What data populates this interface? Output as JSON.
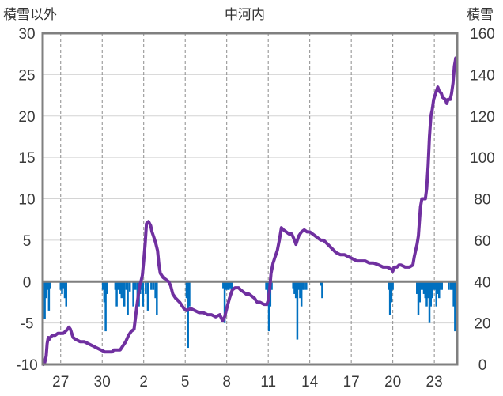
{
  "header": {
    "left_axis_label": "積雪以外",
    "title": "中河内",
    "right_axis_label": "積雪"
  },
  "chart_data": {
    "type": "line",
    "title": "中河内",
    "left_axis": {
      "label": "積雪以外",
      "ylim": [
        -10,
        30
      ],
      "ticks": [
        30,
        25,
        20,
        15,
        10,
        5,
        0,
        -5,
        -10
      ]
    },
    "right_axis": {
      "label": "積雪",
      "ylim": [
        0,
        160
      ],
      "ticks": [
        160,
        140,
        120,
        100,
        80,
        60,
        40,
        20,
        0
      ]
    },
    "x_ticks": [
      {
        "label": "27",
        "x": 1.0
      },
      {
        "label": "30",
        "x": 4.0
      },
      {
        "label": "2",
        "x": 7.0
      },
      {
        "label": "5",
        "x": 10.0
      },
      {
        "label": "8",
        "x": 13.0
      },
      {
        "label": "11",
        "x": 16.0
      },
      {
        "label": "14",
        "x": 19.0
      },
      {
        "label": "17",
        "x": 22.0
      },
      {
        "label": "20",
        "x": 25.0
      },
      {
        "label": "23",
        "x": 28.0
      }
    ],
    "x_range": [
      -0.3,
      29.65
    ],
    "grid": {
      "vertical": "dashed",
      "horizontal": "solid"
    },
    "colors": {
      "snow_line": "#7030a0",
      "bars": "#0070c0",
      "frame": "#808080"
    },
    "series": [
      {
        "type": "line",
        "axis": "right",
        "values": [
          [
            -0.25,
            0
          ],
          [
            -0.15,
            1
          ],
          [
            -0.05,
            4
          ],
          [
            0.02,
            10
          ],
          [
            0.1,
            13
          ],
          [
            0.15,
            12
          ],
          [
            0.25,
            13
          ],
          [
            0.4,
            14
          ],
          [
            0.6,
            14
          ],
          [
            0.8,
            15
          ],
          [
            1.0,
            15
          ],
          [
            1.2,
            15
          ],
          [
            1.35,
            16
          ],
          [
            1.5,
            17
          ],
          [
            1.6,
            18
          ],
          [
            1.7,
            17
          ],
          [
            1.8,
            15
          ],
          [
            1.9,
            13
          ],
          [
            2.1,
            12
          ],
          [
            2.4,
            11
          ],
          [
            2.7,
            11
          ],
          [
            3.0,
            10
          ],
          [
            3.3,
            9
          ],
          [
            3.6,
            8
          ],
          [
            3.9,
            7
          ],
          [
            4.2,
            6
          ],
          [
            4.5,
            6
          ],
          [
            4.7,
            6
          ],
          [
            4.85,
            7
          ],
          [
            5.0,
            7
          ],
          [
            5.15,
            7
          ],
          [
            5.3,
            7
          ],
          [
            5.5,
            9
          ],
          [
            5.7,
            11
          ],
          [
            5.9,
            14
          ],
          [
            6.1,
            16
          ],
          [
            6.3,
            17
          ],
          [
            6.5,
            28
          ],
          [
            6.7,
            38
          ],
          [
            6.8,
            40
          ],
          [
            6.9,
            43
          ],
          [
            7.0,
            50
          ],
          [
            7.1,
            58
          ],
          [
            7.2,
            68
          ],
          [
            7.35,
            69
          ],
          [
            7.5,
            67
          ],
          [
            7.6,
            64
          ],
          [
            7.7,
            62
          ],
          [
            7.85,
            59
          ],
          [
            8.0,
            55
          ],
          [
            8.1,
            48
          ],
          [
            8.2,
            44
          ],
          [
            8.4,
            42
          ],
          [
            8.6,
            41
          ],
          [
            8.8,
            40
          ],
          [
            8.95,
            38
          ],
          [
            9.1,
            34
          ],
          [
            9.3,
            32
          ],
          [
            9.6,
            30
          ],
          [
            9.9,
            27
          ],
          [
            10.1,
            26
          ],
          [
            10.4,
            27
          ],
          [
            10.7,
            26
          ],
          [
            11.0,
            25
          ],
          [
            11.3,
            25
          ],
          [
            11.6,
            24
          ],
          [
            11.9,
            24
          ],
          [
            12.2,
            23
          ],
          [
            12.5,
            24
          ],
          [
            12.7,
            21
          ],
          [
            12.85,
            23
          ],
          [
            13.0,
            27
          ],
          [
            13.2,
            32
          ],
          [
            13.4,
            36
          ],
          [
            13.6,
            37
          ],
          [
            13.85,
            37
          ],
          [
            14.0,
            36
          ],
          [
            14.2,
            35
          ],
          [
            14.4,
            34
          ],
          [
            14.6,
            34
          ],
          [
            14.8,
            33
          ],
          [
            15.0,
            32
          ],
          [
            15.2,
            30
          ],
          [
            15.4,
            30
          ],
          [
            15.7,
            29
          ],
          [
            15.9,
            29
          ],
          [
            16.0,
            31
          ],
          [
            16.1,
            36
          ],
          [
            16.2,
            44
          ],
          [
            16.35,
            49
          ],
          [
            16.5,
            52
          ],
          [
            16.65,
            55
          ],
          [
            16.8,
            60
          ],
          [
            16.95,
            66
          ],
          [
            17.1,
            65
          ],
          [
            17.3,
            64
          ],
          [
            17.5,
            63
          ],
          [
            17.7,
            63
          ],
          [
            17.9,
            60
          ],
          [
            18.0,
            58
          ],
          [
            18.2,
            62
          ],
          [
            18.4,
            64
          ],
          [
            18.6,
            65
          ],
          [
            18.8,
            64
          ],
          [
            19.0,
            64
          ],
          [
            19.2,
            63
          ],
          [
            19.4,
            62
          ],
          [
            19.6,
            61
          ],
          [
            19.8,
            60
          ],
          [
            20.0,
            60
          ],
          [
            20.3,
            58
          ],
          [
            20.6,
            56
          ],
          [
            20.9,
            54
          ],
          [
            21.2,
            53
          ],
          [
            21.5,
            53
          ],
          [
            21.8,
            52
          ],
          [
            22.1,
            51
          ],
          [
            22.4,
            50
          ],
          [
            22.7,
            50
          ],
          [
            23.0,
            50
          ],
          [
            23.3,
            49
          ],
          [
            23.6,
            49
          ],
          [
            24.0,
            48
          ],
          [
            24.3,
            47
          ],
          [
            24.6,
            47
          ],
          [
            24.9,
            46
          ],
          [
            25.0,
            45
          ],
          [
            25.1,
            47
          ],
          [
            25.3,
            47
          ],
          [
            25.45,
            48
          ],
          [
            25.6,
            48
          ],
          [
            25.9,
            47
          ],
          [
            26.2,
            47
          ],
          [
            26.45,
            48
          ],
          [
            26.55,
            52
          ],
          [
            26.65,
            55
          ],
          [
            26.75,
            58
          ],
          [
            26.85,
            62
          ],
          [
            27.0,
            76
          ],
          [
            27.1,
            80
          ],
          [
            27.2,
            80
          ],
          [
            27.35,
            80
          ],
          [
            27.45,
            85
          ],
          [
            27.55,
            96
          ],
          [
            27.65,
            110
          ],
          [
            27.75,
            120
          ],
          [
            27.85,
            123
          ],
          [
            27.95,
            128
          ],
          [
            28.05,
            130
          ],
          [
            28.15,
            132
          ],
          [
            28.25,
            134
          ],
          [
            28.35,
            132
          ],
          [
            28.5,
            131
          ],
          [
            28.6,
            129
          ],
          [
            28.8,
            128
          ],
          [
            28.9,
            126
          ],
          [
            29.0,
            128
          ],
          [
            29.15,
            128
          ],
          [
            29.25,
            131
          ],
          [
            29.35,
            136
          ],
          [
            29.45,
            144
          ],
          [
            29.55,
            148
          ]
        ]
      },
      {
        "type": "bar",
        "axis": "left",
        "values": [
          [
            -0.15,
            -4.5
          ],
          [
            -0.05,
            -2.0
          ],
          [
            0.05,
            -1.0
          ],
          [
            0.15,
            -3.5
          ],
          [
            0.25,
            -0.8
          ],
          [
            1.0,
            -1.0
          ],
          [
            1.1,
            -1.5
          ],
          [
            1.2,
            -0.8
          ],
          [
            1.3,
            -2.0
          ],
          [
            1.4,
            -3.0
          ],
          [
            4.05,
            -1.0
          ],
          [
            4.15,
            -2.5
          ],
          [
            4.25,
            -6.0
          ],
          [
            4.35,
            -1.5
          ],
          [
            4.95,
            -1.0
          ],
          [
            5.05,
            -3.0
          ],
          [
            5.15,
            -1.0
          ],
          [
            5.3,
            -1.5
          ],
          [
            5.4,
            -2.0
          ],
          [
            5.5,
            -1.0
          ],
          [
            5.6,
            -3.0
          ],
          [
            5.75,
            -1.0
          ],
          [
            5.85,
            -4.0
          ],
          [
            6.0,
            -1.2
          ],
          [
            6.25,
            -3.0
          ],
          [
            6.4,
            -1.0
          ],
          [
            6.55,
            -2.0
          ],
          [
            6.65,
            -3.0
          ],
          [
            6.75,
            -1.5
          ],
          [
            6.85,
            -1.0
          ],
          [
            6.95,
            -3.0
          ],
          [
            7.15,
            -1.5
          ],
          [
            7.3,
            -3.5
          ],
          [
            7.55,
            -1.0
          ],
          [
            7.7,
            -1.0
          ],
          [
            7.85,
            -2.0
          ],
          [
            7.95,
            -4.0
          ],
          [
            10.1,
            -2.0
          ],
          [
            10.2,
            -8.0
          ],
          [
            10.3,
            -3.0
          ],
          [
            12.75,
            -0.8
          ],
          [
            12.85,
            -5.0
          ],
          [
            12.95,
            -1.0
          ],
          [
            13.05,
            -1.0
          ],
          [
            13.15,
            -1.0
          ],
          [
            13.25,
            -0.8
          ],
          [
            13.35,
            -1.0
          ],
          [
            15.85,
            -1.0
          ],
          [
            15.95,
            -2.0
          ],
          [
            16.05,
            -6.0
          ],
          [
            16.15,
            -3.0
          ],
          [
            16.25,
            -1.0
          ],
          [
            17.8,
            -0.8
          ],
          [
            17.9,
            -1.5
          ],
          [
            18.0,
            -2.0
          ],
          [
            18.1,
            -7.0
          ],
          [
            18.2,
            -1.0
          ],
          [
            18.3,
            -2.0
          ],
          [
            18.4,
            -3.0
          ],
          [
            18.5,
            -1.0
          ],
          [
            18.6,
            -1.0
          ],
          [
            18.75,
            -1.0
          ],
          [
            19.8,
            -0.5
          ],
          [
            19.9,
            -2.0
          ],
          [
            24.7,
            -1.0
          ],
          [
            24.8,
            -4.0
          ],
          [
            24.9,
            -2.5
          ],
          [
            25.0,
            -1.0
          ],
          [
            26.75,
            -1.5
          ],
          [
            26.85,
            -4.0
          ],
          [
            26.95,
            -2.5
          ],
          [
            27.05,
            -1.0
          ],
          [
            27.15,
            -1.0
          ],
          [
            27.25,
            -1.5
          ],
          [
            27.35,
            -2.0
          ],
          [
            27.45,
            -3.0
          ],
          [
            27.55,
            -2.0
          ],
          [
            27.65,
            -5.0
          ],
          [
            27.75,
            -3.0
          ],
          [
            27.85,
            -2.0
          ],
          [
            27.95,
            -1.0
          ],
          [
            28.05,
            -1.0
          ],
          [
            28.15,
            -3.0
          ],
          [
            28.25,
            -1.5
          ],
          [
            28.35,
            -2.0
          ],
          [
            28.45,
            -1.0
          ],
          [
            28.55,
            -1.0
          ],
          [
            29.05,
            -1.0
          ],
          [
            29.2,
            -1.0
          ],
          [
            29.3,
            -1.0
          ],
          [
            29.4,
            -3.0
          ],
          [
            29.5,
            -6.0
          ]
        ]
      }
    ]
  }
}
